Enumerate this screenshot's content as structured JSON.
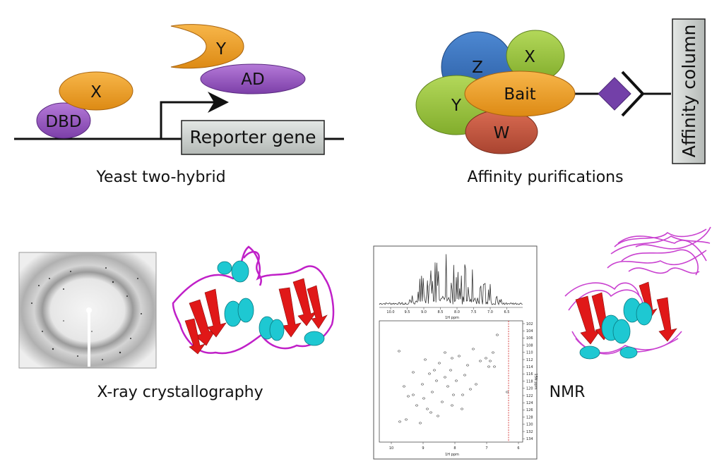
{
  "panels": {
    "y2h": {
      "caption": "Yeast two-hybrid",
      "dbd": "DBD",
      "x": "X",
      "y": "Y",
      "ad": "AD",
      "reporter": "Reporter gene"
    },
    "affinity": {
      "caption": "Affinity purifications",
      "z": "Z",
      "x": "X",
      "y": "Y",
      "bait": "Bait",
      "w": "W",
      "column": "Affinity column"
    },
    "xray": {
      "caption": "X-ray crystallography"
    },
    "nmr": {
      "caption": "NMR",
      "axis_1h": "1H ppm",
      "axis_1h_bottom": "1H ppm",
      "axis_15n": "15N ppm",
      "top_ticks": [
        "10.0",
        "9.5",
        "9.0",
        "8.5",
        "8.0",
        "7.5",
        "7.0",
        "6.5"
      ],
      "bottom_ticks": [
        "10",
        "9",
        "8",
        "7",
        "6"
      ],
      "right_ticks": [
        "102",
        "104",
        "106",
        "108",
        "110",
        "112",
        "114",
        "116",
        "118",
        "120",
        "122",
        "124",
        "126",
        "128",
        "130",
        "132",
        "134"
      ]
    }
  },
  "colors": {
    "orange": "#f0a028",
    "purple": "#9d59c4",
    "blue": "#3c73bd",
    "green": "#9cc742",
    "red": "#c8563f",
    "diamond": "#7340a8",
    "helix": "#1ec8d2",
    "strand": "#e01818",
    "loop": "#c020c8"
  }
}
